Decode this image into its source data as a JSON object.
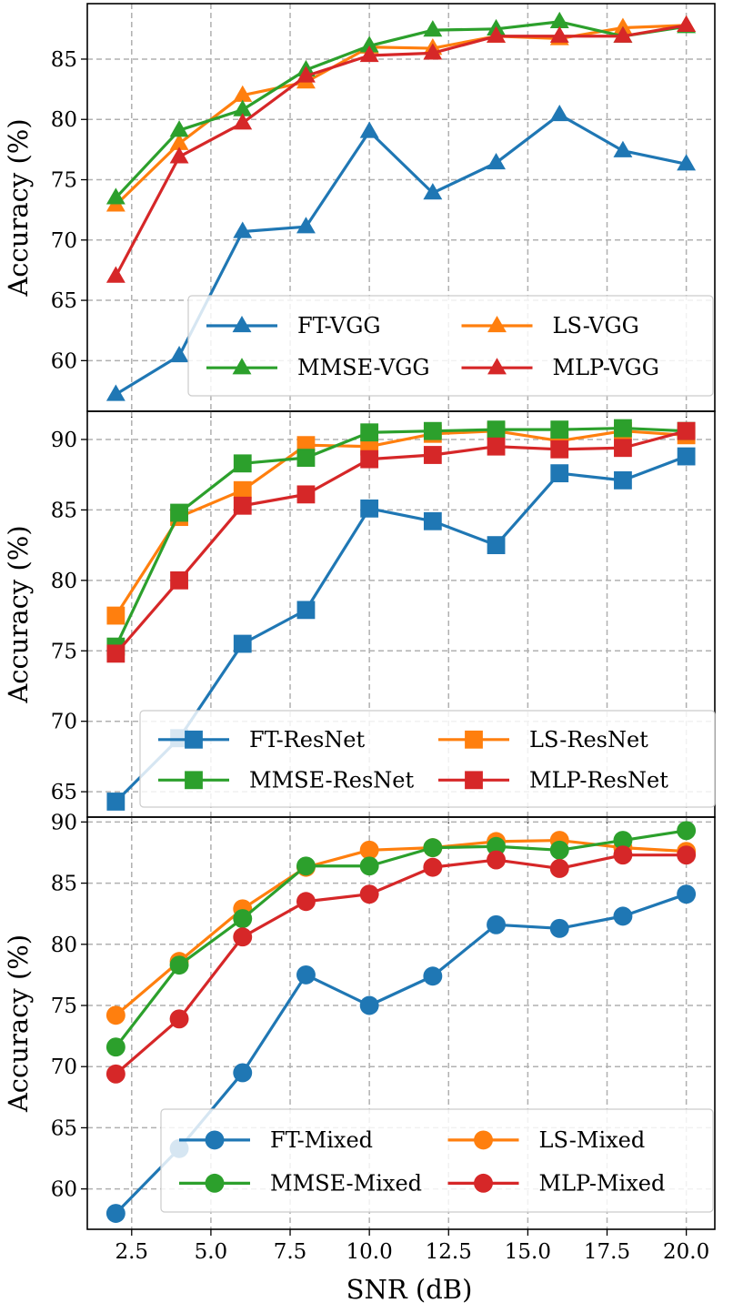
{
  "colors": {
    "FT": "#1f77b4",
    "LS": "#ff7f0e",
    "MMSE": "#2ca02c",
    "MLP": "#d62728",
    "grid": "#b0b0b0"
  },
  "chart_data": [
    {
      "type": "line",
      "marker": "triangle",
      "x": [
        2,
        4,
        6,
        8,
        10,
        12,
        14,
        16,
        18,
        20
      ],
      "ylabel": "Accuracy (%)",
      "xlabel": "",
      "xlim": [
        1.1,
        20.9
      ],
      "ylim": [
        55.8,
        89.6
      ],
      "yticks": [
        60,
        65,
        70,
        75,
        80,
        85
      ],
      "grid": true,
      "legend": "bottom-right",
      "series": [
        {
          "name": "FT-VGG",
          "color": "#1f77b4",
          "values": [
            57.2,
            60.4,
            70.7,
            71.1,
            79.0,
            73.9,
            76.4,
            80.4,
            77.4,
            76.3
          ]
        },
        {
          "name": "LS-VGG",
          "color": "#ff7f0e",
          "values": [
            72.9,
            78.0,
            82.0,
            83.1,
            86.0,
            85.9,
            86.9,
            86.7,
            87.6,
            87.8
          ]
        },
        {
          "name": "MMSE-VGG",
          "color": "#2ca02c",
          "values": [
            73.5,
            79.1,
            80.8,
            84.1,
            86.1,
            87.4,
            87.5,
            88.1,
            86.9,
            87.7
          ]
        },
        {
          "name": "MLP-VGG",
          "color": "#d62728",
          "values": [
            67.0,
            76.9,
            79.7,
            83.6,
            85.3,
            85.5,
            86.9,
            86.9,
            86.9,
            87.8
          ]
        }
      ]
    },
    {
      "type": "line",
      "marker": "square",
      "x": [
        2,
        4,
        6,
        8,
        10,
        12,
        14,
        16,
        18,
        20
      ],
      "ylabel": "Accuracy (%)",
      "xlabel": "",
      "xlim": [
        1.1,
        20.9
      ],
      "ylim": [
        63.2,
        92.0
      ],
      "yticks": [
        65,
        70,
        75,
        80,
        85,
        90
      ],
      "grid": true,
      "legend": "bottom-right",
      "series": [
        {
          "name": "FT-ResNet",
          "color": "#1f77b4",
          "values": [
            64.3,
            68.8,
            75.5,
            77.9,
            85.1,
            84.2,
            82.5,
            87.6,
            87.1,
            88.8
          ]
        },
        {
          "name": "LS-ResNet",
          "color": "#ff7f0e",
          "values": [
            77.5,
            84.5,
            86.4,
            89.6,
            89.5,
            90.4,
            90.6,
            89.9,
            90.6,
            90.3
          ]
        },
        {
          "name": "MMSE-ResNet",
          "color": "#2ca02c",
          "values": [
            75.3,
            84.8,
            88.3,
            88.7,
            90.5,
            90.6,
            90.7,
            90.7,
            90.8,
            90.6
          ]
        },
        {
          "name": "MLP-ResNet",
          "color": "#d62728",
          "values": [
            74.8,
            80.0,
            85.3,
            86.1,
            88.6,
            88.9,
            89.5,
            89.3,
            89.4,
            90.6
          ]
        }
      ]
    },
    {
      "type": "line",
      "marker": "circle",
      "x": [
        2,
        4,
        6,
        8,
        10,
        12,
        14,
        16,
        18,
        20
      ],
      "ylabel": "Accuracy (%)",
      "xlabel": "SNR (dB)",
      "xlim": [
        1.1,
        20.9
      ],
      "xticks": [
        2.5,
        5.0,
        7.5,
        10.0,
        12.5,
        15.0,
        17.5,
        20.0
      ],
      "xtick_labels": [
        "2.5",
        "5.0",
        "7.5",
        "10.0",
        "12.5",
        "15.0",
        "17.5",
        "20.0"
      ],
      "ylim": [
        56.7,
        90.4
      ],
      "yticks": [
        60,
        65,
        70,
        75,
        80,
        85,
        90
      ],
      "grid": true,
      "legend": "bottom-right",
      "series": [
        {
          "name": "FT-Mixed",
          "color": "#1f77b4",
          "values": [
            58.0,
            63.3,
            69.5,
            77.5,
            75.0,
            77.4,
            81.6,
            81.3,
            82.3,
            84.1
          ]
        },
        {
          "name": "LS-Mixed",
          "color": "#ff7f0e",
          "values": [
            74.2,
            78.6,
            82.9,
            86.3,
            87.7,
            87.9,
            88.4,
            88.5,
            87.9,
            87.6
          ]
        },
        {
          "name": "MMSE-Mixed",
          "color": "#2ca02c",
          "values": [
            71.6,
            78.3,
            82.1,
            86.4,
            86.4,
            87.9,
            88.0,
            87.7,
            88.5,
            89.3
          ]
        },
        {
          "name": "MLP-Mixed",
          "color": "#d62728",
          "values": [
            69.4,
            73.9,
            80.6,
            83.5,
            84.1,
            86.3,
            86.9,
            86.2,
            87.3,
            87.3
          ]
        }
      ]
    }
  ]
}
